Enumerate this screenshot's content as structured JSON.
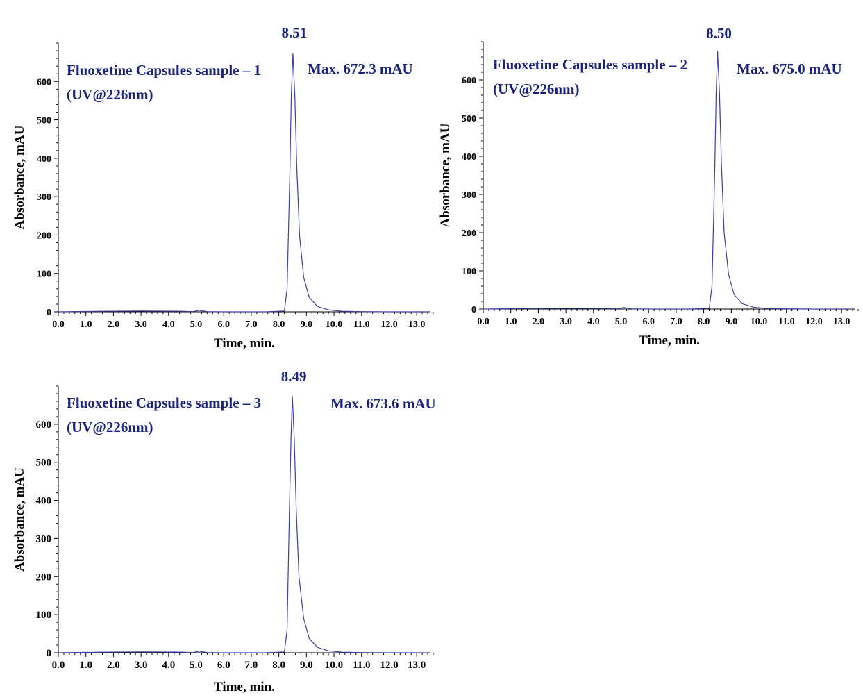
{
  "chart_data": [
    {
      "type": "line",
      "title": "Fluoxetine Capsules sample – 1",
      "subtitle": "(UV@226nm)",
      "max_label": "Max. 672.3 mAU",
      "peak_label": "8.51",
      "xlabel": "Time, min.",
      "ylabel": "Absorbance, mAU",
      "xlim": [
        0,
        13.5
      ],
      "ylim": [
        0,
        700
      ],
      "x_ticks": [
        0,
        1,
        2,
        3,
        4,
        5,
        6,
        7,
        8,
        9,
        10,
        11,
        12,
        13
      ],
      "x_tick_labels": [
        "0.0",
        "1.0",
        "2.0",
        "3.0",
        "4.0",
        "5.0",
        "6.0",
        "7.0",
        "8.0",
        "9.0",
        "10.0",
        "11.0",
        "12.0",
        "13.0"
      ],
      "y_ticks": [
        0,
        100,
        200,
        300,
        400,
        500,
        600
      ],
      "y_tick_labels": [
        "0",
        "100",
        "200",
        "300",
        "400",
        "500",
        "600"
      ],
      "grid": false,
      "series": [
        {
          "color": "#3f3fa0",
          "x": [
            0,
            1.5,
            3.0,
            4.5,
            4.9,
            5.1,
            5.4,
            6.0,
            7.5,
            8.2,
            8.3,
            8.4,
            8.45,
            8.51,
            8.58,
            8.65,
            8.75,
            8.9,
            9.1,
            9.4,
            9.8,
            10.3,
            11.0,
            12.0,
            13.4
          ],
          "y": [
            0,
            1.5,
            2,
            1.5,
            0.5,
            4,
            0.5,
            0,
            0,
            2,
            60,
            360,
            560,
            672.3,
            560,
            380,
            200,
            90,
            38,
            14,
            5,
            1.5,
            0.5,
            0,
            0
          ]
        }
      ]
    },
    {
      "type": "line",
      "title": "Fluoxetine Capsules sample – 2",
      "subtitle": "(UV@226nm)",
      "max_label": "Max. 675.0 mAU",
      "peak_label": "8.50",
      "xlabel": "Time, min.",
      "ylabel": "Absorbance, mAU",
      "xlim": [
        0,
        13.5
      ],
      "ylim": [
        0,
        700
      ],
      "x_ticks": [
        0,
        1,
        2,
        3,
        4,
        5,
        6,
        7,
        8,
        9,
        10,
        11,
        12,
        13
      ],
      "x_tick_labels": [
        "0.0",
        "1.0",
        "2.0",
        "3.0",
        "4.0",
        "5.0",
        "6.0",
        "7.0",
        "8.0",
        "9.0",
        "10.0",
        "11.0",
        "12.0",
        "13.0"
      ],
      "y_ticks": [
        0,
        100,
        200,
        300,
        400,
        500,
        600
      ],
      "y_tick_labels": [
        "0",
        "100",
        "200",
        "300",
        "400",
        "500",
        "600"
      ],
      "grid": false,
      "series": [
        {
          "color": "#3f3fa0",
          "x": [
            0,
            1.5,
            3.0,
            4.5,
            4.9,
            5.1,
            5.4,
            6.0,
            7.5,
            8.2,
            8.3,
            8.4,
            8.45,
            8.5,
            8.57,
            8.64,
            8.74,
            8.9,
            9.1,
            9.4,
            9.8,
            10.3,
            11.0,
            12.0,
            13.4
          ],
          "y": [
            0,
            1.5,
            2,
            1.5,
            0.5,
            4,
            0.5,
            0,
            0,
            2,
            60,
            365,
            565,
            675.0,
            565,
            385,
            200,
            90,
            38,
            14,
            5,
            1.5,
            0.5,
            0,
            0
          ]
        }
      ]
    },
    {
      "type": "line",
      "title": "Fluoxetine Capsules sample – 3",
      "subtitle": "(UV@226nm)",
      "max_label": "Max. 673.6 mAU",
      "peak_label": "8.49",
      "xlabel": "Time, min.",
      "ylabel": "Absorbance, mAU",
      "xlim": [
        0,
        13.5
      ],
      "ylim": [
        0,
        700
      ],
      "x_ticks": [
        0,
        1,
        2,
        3,
        4,
        5,
        6,
        7,
        8,
        9,
        10,
        11,
        12,
        13
      ],
      "x_tick_labels": [
        "0.0",
        "1.0",
        "2.0",
        "3.0",
        "4.0",
        "5.0",
        "6.0",
        "7.0",
        "8.0",
        "9.0",
        "10.0",
        "11.0",
        "12.0",
        "13.0"
      ],
      "y_ticks": [
        0,
        100,
        200,
        300,
        400,
        500,
        600
      ],
      "y_tick_labels": [
        "0",
        "100",
        "200",
        "300",
        "400",
        "500",
        "600"
      ],
      "grid": false,
      "series": [
        {
          "color": "#3f3fa0",
          "x": [
            0,
            1.5,
            3.0,
            4.5,
            4.9,
            5.1,
            5.4,
            6.0,
            7.5,
            8.2,
            8.3,
            8.38,
            8.44,
            8.49,
            8.56,
            8.63,
            8.73,
            8.9,
            9.1,
            9.4,
            9.8,
            10.3,
            11.0,
            12.0,
            13.4
          ],
          "y": [
            0,
            1.5,
            2,
            1.5,
            0.5,
            4,
            0.5,
            0,
            0,
            2,
            60,
            360,
            560,
            673.6,
            560,
            380,
            200,
            90,
            38,
            14,
            5,
            1.5,
            0.5,
            0,
            0
          ]
        }
      ]
    }
  ]
}
